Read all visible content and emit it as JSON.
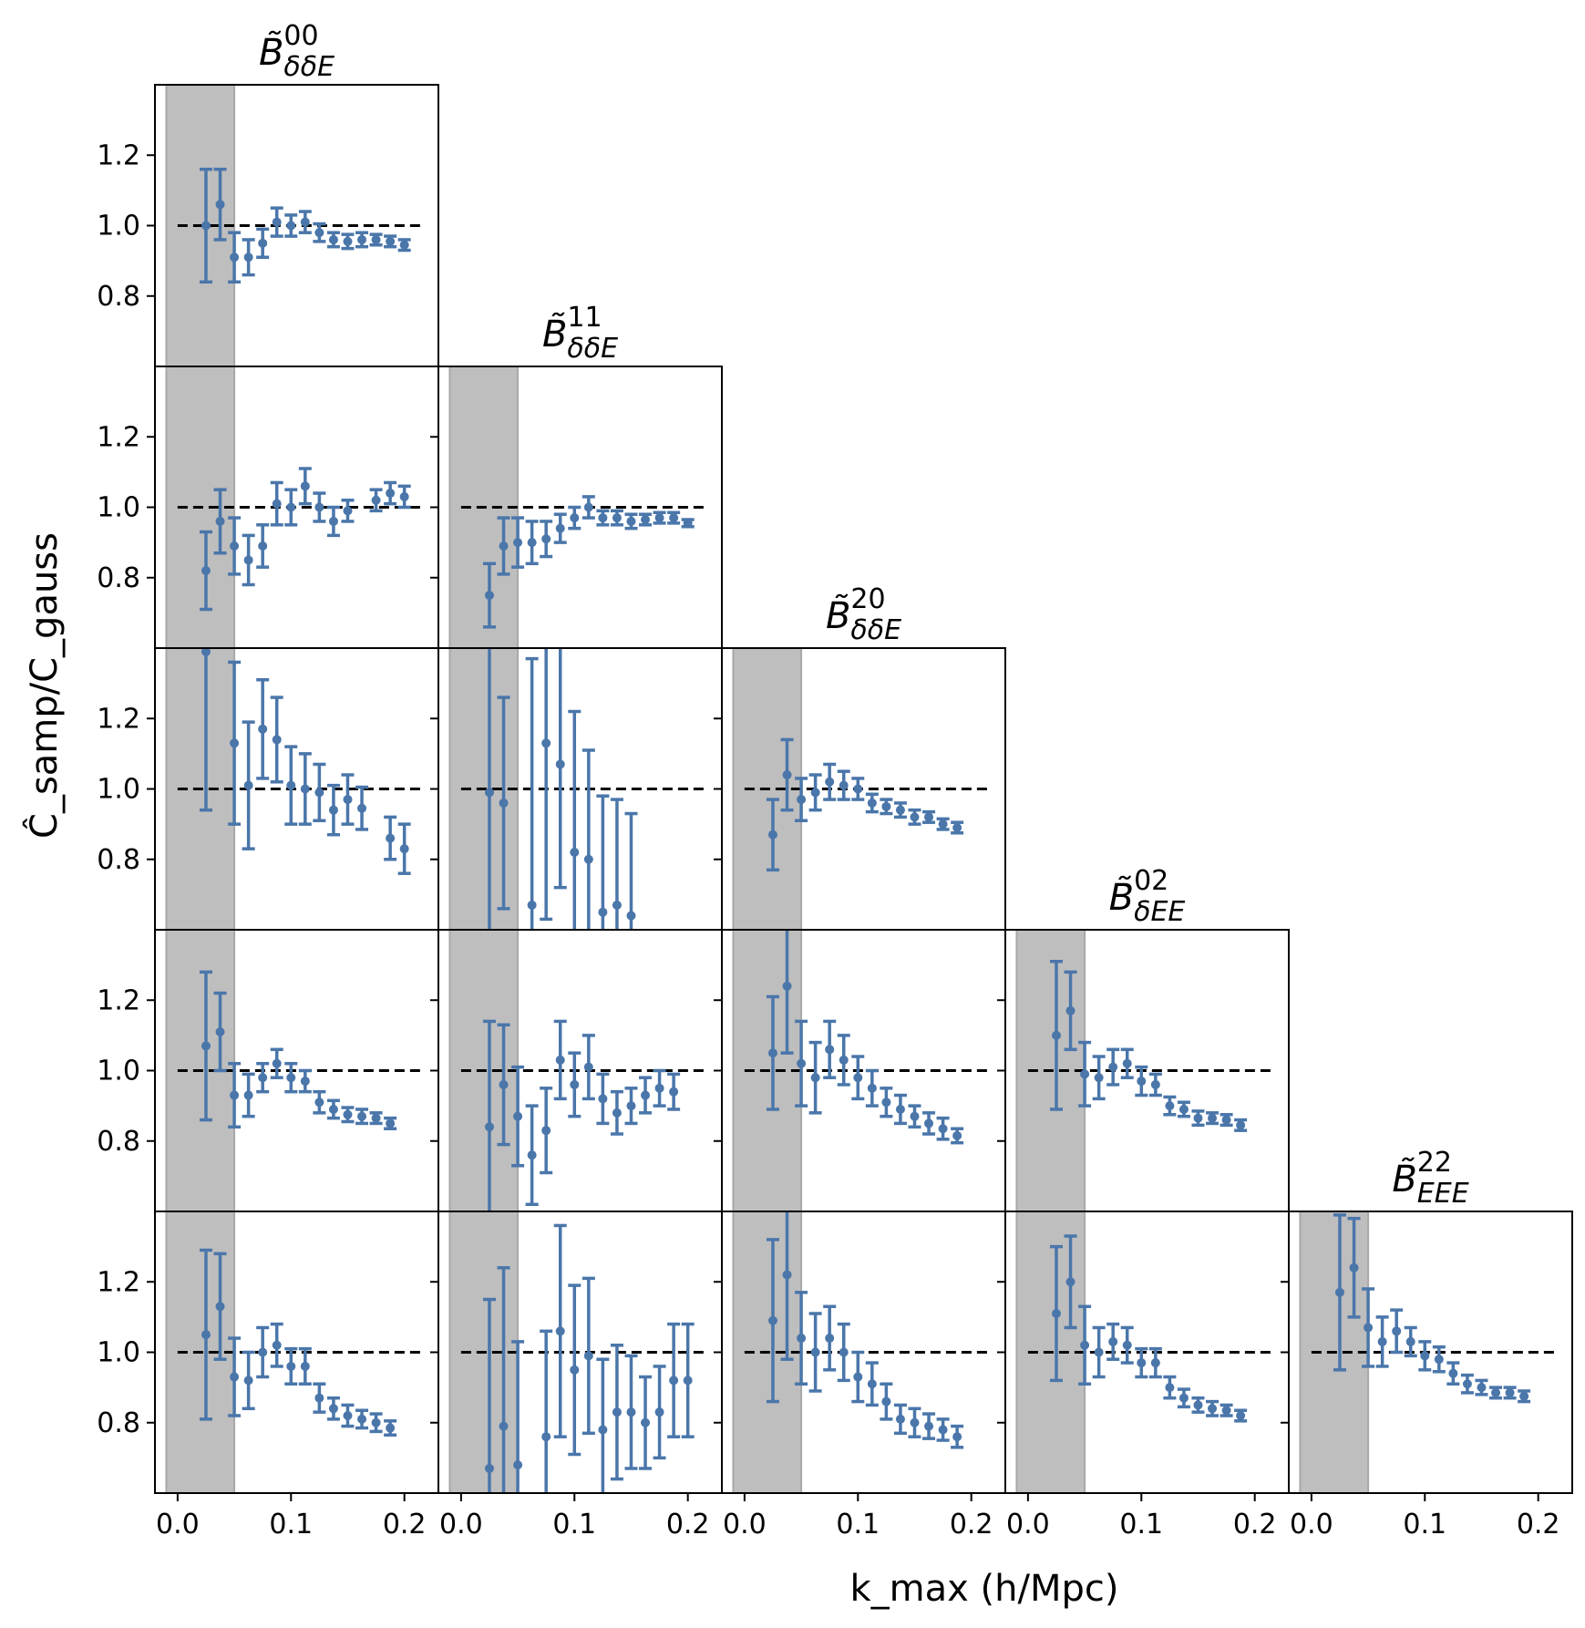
{
  "colors": {
    "marker": "#4a76aa",
    "shade": "#bebebe",
    "reference_line": "#000000",
    "frame": "#000000",
    "background": "#ffffff"
  },
  "chart_data": {
    "type": "scatter",
    "layout": "lower-triangular 5x5 grid of panels with error bars",
    "xlabel": "k_max (h/Mpc)",
    "ylabel": "Ĉ_samp/C_gauss",
    "xlim": [
      -0.02,
      0.23
    ],
    "ylim": [
      0.6,
      1.4
    ],
    "xticks": [
      "0.0",
      "0.1",
      "0.2"
    ],
    "yticks": [
      "0.8",
      "1.0",
      "1.2"
    ],
    "reference_line": 1.0,
    "shaded_region": [
      -0.01,
      0.05
    ],
    "x": [
      0.025,
      0.0375,
      0.05,
      0.0625,
      0.075,
      0.0875,
      0.1,
      0.1125,
      0.125,
      0.1375,
      0.15,
      0.1625,
      0.175,
      0.1875,
      0.2
    ],
    "column_titles": [
      {
        "base": "B̃",
        "sup": "00",
        "sub": "δδE"
      },
      {
        "base": "B̃",
        "sup": "11",
        "sub": "δδE"
      },
      {
        "base": "B̃",
        "sup": "20",
        "sub": "δδE"
      },
      {
        "base": "B̃",
        "sup": "02",
        "sub": "δEE"
      },
      {
        "base": "B̃",
        "sup": "22",
        "sub": "EEE"
      }
    ],
    "panels": [
      {
        "row": 0,
        "col": 0,
        "y": [
          1.0,
          1.06,
          0.91,
          0.91,
          0.95,
          1.01,
          1.0,
          1.01,
          0.98,
          0.96,
          0.955,
          0.96,
          0.96,
          0.955,
          0.945
        ],
        "err": [
          0.16,
          0.1,
          0.07,
          0.05,
          0.04,
          0.04,
          0.03,
          0.03,
          0.025,
          0.02,
          0.02,
          0.02,
          0.015,
          0.015,
          0.015
        ]
      },
      {
        "row": 1,
        "col": 0,
        "y": [
          0.82,
          0.96,
          0.89,
          0.85,
          0.89,
          1.01,
          1.0,
          1.06,
          1.0,
          0.96,
          0.99,
          null,
          1.02,
          1.04,
          1.03
        ],
        "err": [
          0.11,
          0.09,
          0.08,
          0.07,
          0.06,
          0.06,
          0.05,
          0.05,
          0.04,
          0.04,
          0.03,
          null,
          0.03,
          0.03,
          0.03
        ]
      },
      {
        "row": 1,
        "col": 1,
        "y": [
          0.75,
          0.89,
          0.9,
          0.9,
          0.91,
          0.94,
          0.97,
          1.0,
          0.97,
          0.97,
          0.96,
          0.965,
          0.97,
          0.97,
          0.955
        ],
        "err": [
          0.09,
          0.08,
          0.07,
          0.06,
          0.05,
          0.04,
          0.03,
          0.03,
          0.02,
          0.02,
          0.02,
          0.015,
          0.015,
          0.015,
          0.01
        ]
      },
      {
        "row": 2,
        "col": 0,
        "y": [
          1.39,
          null,
          1.13,
          1.01,
          1.17,
          1.14,
          1.01,
          1.0,
          0.99,
          0.94,
          0.97,
          0.945,
          null,
          0.86,
          0.83
        ],
        "err": [
          0.45,
          null,
          0.23,
          0.18,
          0.14,
          0.12,
          0.11,
          0.1,
          0.08,
          0.07,
          0.07,
          0.06,
          null,
          0.06,
          0.07
        ]
      },
      {
        "row": 2,
        "col": 1,
        "y": [
          0.99,
          0.96,
          null,
          0.67,
          1.13,
          1.07,
          0.82,
          0.8,
          0.65,
          0.67,
          0.64,
          null,
          null,
          null,
          null
        ],
        "err": [
          0.5,
          0.3,
          null,
          0.7,
          0.5,
          0.35,
          0.4,
          0.31,
          0.33,
          0.3,
          0.29,
          null,
          null,
          null,
          null
        ]
      },
      {
        "row": 2,
        "col": 2,
        "y": [
          0.87,
          1.04,
          0.97,
          0.99,
          1.02,
          1.01,
          1.0,
          0.96,
          0.95,
          0.94,
          0.92,
          0.92,
          0.9,
          0.89,
          null
        ],
        "err": [
          0.1,
          0.1,
          0.06,
          0.05,
          0.05,
          0.04,
          0.03,
          0.025,
          0.02,
          0.02,
          0.02,
          0.015,
          0.015,
          0.015,
          null
        ]
      },
      {
        "row": 3,
        "col": 0,
        "y": [
          1.07,
          1.11,
          0.93,
          0.93,
          0.98,
          1.02,
          0.98,
          0.97,
          0.91,
          0.89,
          0.875,
          0.87,
          0.865,
          0.85,
          null
        ],
        "err": [
          0.21,
          0.11,
          0.09,
          0.06,
          0.04,
          0.04,
          0.04,
          0.03,
          0.03,
          0.025,
          0.02,
          0.02,
          0.015,
          0.015,
          null
        ]
      },
      {
        "row": 3,
        "col": 1,
        "y": [
          0.84,
          0.96,
          0.87,
          0.76,
          0.83,
          1.03,
          0.96,
          1.01,
          0.92,
          0.88,
          0.9,
          0.93,
          0.95,
          0.94,
          null
        ],
        "err": [
          0.3,
          0.17,
          0.14,
          0.14,
          0.12,
          0.11,
          0.09,
          0.09,
          0.07,
          0.06,
          0.05,
          0.05,
          0.05,
          0.05,
          null
        ]
      },
      {
        "row": 3,
        "col": 2,
        "y": [
          1.05,
          1.24,
          1.02,
          0.98,
          1.06,
          1.03,
          0.98,
          0.95,
          0.91,
          0.89,
          0.87,
          0.85,
          0.835,
          0.815,
          null
        ],
        "err": [
          0.16,
          0.19,
          0.12,
          0.1,
          0.08,
          0.07,
          0.06,
          0.05,
          0.04,
          0.04,
          0.03,
          0.03,
          0.03,
          0.02,
          null
        ]
      },
      {
        "row": 3,
        "col": 3,
        "y": [
          1.1,
          1.17,
          0.99,
          0.98,
          1.01,
          1.02,
          0.97,
          0.96,
          0.9,
          0.89,
          0.865,
          0.865,
          0.86,
          0.845,
          null
        ],
        "err": [
          0.21,
          0.11,
          0.09,
          0.06,
          0.05,
          0.04,
          0.04,
          0.03,
          0.025,
          0.02,
          0.02,
          0.015,
          0.015,
          0.015,
          null
        ]
      },
      {
        "row": 4,
        "col": 0,
        "y": [
          1.05,
          1.13,
          0.93,
          0.92,
          1.0,
          1.02,
          0.96,
          0.96,
          0.87,
          0.84,
          0.82,
          0.81,
          0.8,
          0.785,
          null
        ],
        "err": [
          0.24,
          0.15,
          0.11,
          0.08,
          0.07,
          0.06,
          0.05,
          0.05,
          0.04,
          0.03,
          0.03,
          0.025,
          0.025,
          0.02,
          null
        ]
      },
      {
        "row": 4,
        "col": 1,
        "y": [
          0.67,
          0.79,
          0.68,
          null,
          0.76,
          1.06,
          0.95,
          0.99,
          0.78,
          0.83,
          0.83,
          0.8,
          0.83,
          0.92,
          0.92
        ],
        "err": [
          0.48,
          0.45,
          0.35,
          null,
          0.3,
          0.3,
          0.24,
          0.22,
          0.2,
          0.19,
          0.16,
          0.13,
          0.13,
          0.16,
          0.16
        ]
      },
      {
        "row": 4,
        "col": 2,
        "y": [
          1.09,
          1.22,
          1.04,
          1.0,
          1.04,
          1.0,
          0.93,
          0.91,
          0.86,
          0.81,
          0.8,
          0.79,
          0.78,
          0.76,
          null
        ],
        "err": [
          0.23,
          0.24,
          0.13,
          0.11,
          0.09,
          0.08,
          0.07,
          0.06,
          0.05,
          0.04,
          0.04,
          0.035,
          0.03,
          0.03,
          null
        ]
      },
      {
        "row": 4,
        "col": 3,
        "y": [
          1.11,
          1.2,
          1.02,
          1.0,
          1.03,
          1.02,
          0.97,
          0.97,
          0.9,
          0.87,
          0.85,
          0.84,
          0.835,
          0.82,
          null
        ],
        "err": [
          0.19,
          0.13,
          0.11,
          0.07,
          0.05,
          0.05,
          0.04,
          0.04,
          0.03,
          0.025,
          0.02,
          0.02,
          0.015,
          0.015,
          null
        ]
      },
      {
        "row": 4,
        "col": 4,
        "y": [
          1.17,
          1.24,
          1.07,
          1.03,
          1.06,
          1.03,
          0.99,
          0.98,
          0.94,
          0.91,
          0.9,
          0.885,
          0.885,
          0.875,
          null
        ],
        "err": [
          0.22,
          0.14,
          0.11,
          0.07,
          0.06,
          0.04,
          0.04,
          0.035,
          0.03,
          0.025,
          0.02,
          0.015,
          0.015,
          0.015,
          null
        ]
      }
    ]
  }
}
